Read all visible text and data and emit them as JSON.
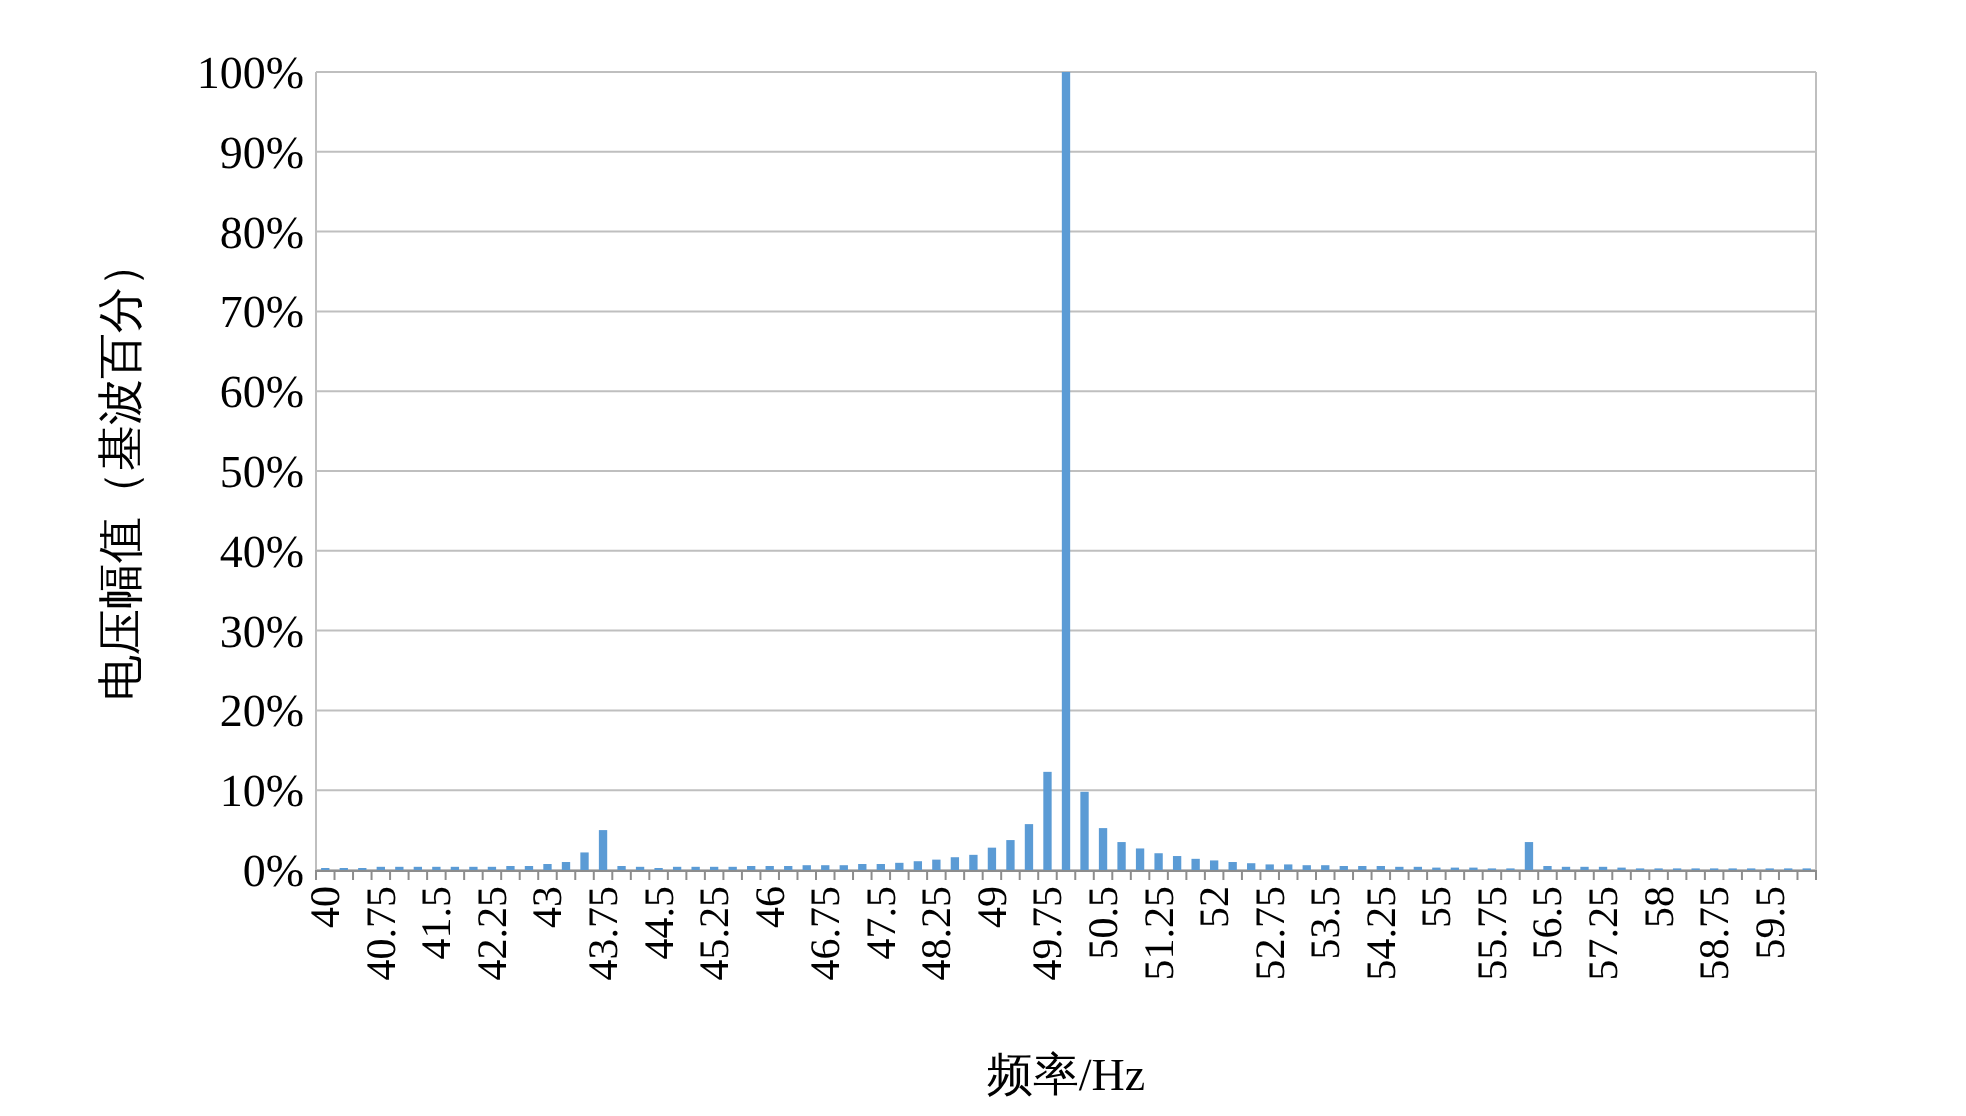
{
  "chart_data": {
    "type": "bar",
    "xlabel": "频率/Hz",
    "ylabel": "电压幅值（基波百分）",
    "categories": [
      "40",
      null,
      null,
      "40.75",
      null,
      null,
      "41.5",
      null,
      null,
      "42.25",
      null,
      null,
      "43",
      null,
      null,
      "43.75",
      null,
      null,
      "44.5",
      null,
      null,
      "45.25",
      null,
      null,
      "46",
      null,
      null,
      "46.75",
      null,
      null,
      "47.5",
      null,
      null,
      "48.25",
      null,
      null,
      "49",
      null,
      null,
      "49.75",
      null,
      null,
      "50.5",
      null,
      null,
      "51.25",
      null,
      null,
      "52",
      null,
      null,
      "52.75",
      null,
      null,
      "53.5",
      null,
      null,
      "54.25",
      null,
      null,
      "55",
      null,
      null,
      "55.75",
      null,
      null,
      "56.5",
      null,
      null,
      "57.25",
      null,
      null,
      "58",
      null,
      null,
      "58.75",
      null,
      null,
      "59.5",
      null,
      null
    ],
    "series": [
      {
        "color": "#5b9bd5",
        "values": [
          0.25,
          0.25,
          0.25,
          0.4,
          0.4,
          0.4,
          0.4,
          0.4,
          0.4,
          0.4,
          0.5,
          0.5,
          0.75,
          1.0,
          2.2,
          5.0,
          0.5,
          0.4,
          0.25,
          0.4,
          0.4,
          0.4,
          0.4,
          0.5,
          0.5,
          0.5,
          0.6,
          0.6,
          0.6,
          0.75,
          0.75,
          0.9,
          1.1,
          1.3,
          1.6,
          1.9,
          2.8,
          3.75,
          5.75,
          12.3,
          100,
          9.8,
          5.25,
          3.5,
          2.7,
          2.1,
          1.75,
          1.4,
          1.2,
          1.0,
          0.85,
          0.7,
          0.7,
          0.6,
          0.6,
          0.5,
          0.5,
          0.5,
          0.4,
          0.4,
          0.3,
          0.3,
          0.3,
          0.2,
          0.2,
          3.5,
          0.5,
          0.4,
          0.4,
          0.4,
          0.3,
          0.2,
          0.2,
          0.2,
          0.2,
          0.2,
          0.2,
          0.2,
          0.2,
          0.2,
          0.2
        ]
      }
    ],
    "ylim": [
      0,
      100
    ],
    "yticks": [
      {
        "value": 0,
        "label": "0%"
      },
      {
        "value": 10,
        "label": "10%"
      },
      {
        "value": 20,
        "label": "20%"
      },
      {
        "value": 30,
        "label": "30%"
      },
      {
        "value": 40,
        "label": "40%"
      },
      {
        "value": 50,
        "label": "50%"
      },
      {
        "value": 60,
        "label": "60%"
      },
      {
        "value": 70,
        "label": "70%"
      },
      {
        "value": 80,
        "label": "80%"
      },
      {
        "value": 90,
        "label": "90%"
      },
      {
        "value": 100,
        "label": "100%"
      }
    ],
    "grid": "y"
  }
}
